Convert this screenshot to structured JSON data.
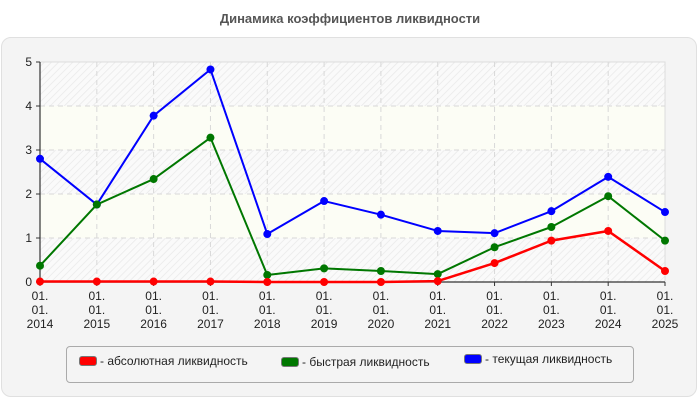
{
  "title": "Динамика коэффициентов ликвидности",
  "chart_data": {
    "type": "line",
    "title": "Динамика коэффициентов ликвидности",
    "xlabel": "",
    "ylabel": "",
    "categories": [
      "01.01.2014",
      "01.01.2015",
      "01.01.2016",
      "01.01.2017",
      "01.01.2018",
      "01.01.2019",
      "01.01.2020",
      "01.01.2021",
      "01.01.2022",
      "01.01.2023",
      "01.01.2024",
      "01.01.2025"
    ],
    "x_tick_lines": [
      [
        "01.",
        "01.",
        "2014"
      ],
      [
        "01.",
        "01.",
        "2015"
      ],
      [
        "01.",
        "01.",
        "2016"
      ],
      [
        "01.",
        "01.",
        "2017"
      ],
      [
        "01.",
        "01.",
        "2018"
      ],
      [
        "01.",
        "01.",
        "2019"
      ],
      [
        "01.",
        "01.",
        "2020"
      ],
      [
        "01.",
        "01.",
        "2021"
      ],
      [
        "01.",
        "01.",
        "2022"
      ],
      [
        "01.",
        "01.",
        "2023"
      ],
      [
        "01.",
        "01.",
        "2024"
      ],
      [
        "01.",
        "01.",
        "2025"
      ]
    ],
    "y_ticks": [
      0,
      1,
      2,
      3,
      4,
      5
    ],
    "ylim": [
      0,
      5
    ],
    "grid": true,
    "legend_position": "bottom",
    "series": [
      {
        "name": "- абсолютная ликвидность",
        "color": "#ff0000",
        "values": [
          0.01,
          0.01,
          0.01,
          0.01,
          0.0,
          0.0,
          0.0,
          0.02,
          0.43,
          0.94,
          1.16,
          0.25
        ]
      },
      {
        "name": "- быстрая ликвидность",
        "color": "#007700",
        "values": [
          0.37,
          1.76,
          2.34,
          3.28,
          0.16,
          0.31,
          0.25,
          0.18,
          0.79,
          1.25,
          1.95,
          0.94
        ]
      },
      {
        "name": "- текущая ликвидность",
        "color": "#0000ff",
        "values": [
          2.8,
          1.76,
          3.78,
          4.83,
          1.09,
          1.84,
          1.53,
          1.16,
          1.11,
          1.61,
          2.39,
          1.59
        ]
      }
    ]
  },
  "legend": [
    {
      "label": "- абсолютная ликвидность",
      "color": "#ff0000"
    },
    {
      "label": "- быстрая ликвидность",
      "color": "#007700"
    },
    {
      "label": "- текущая ликвидность",
      "color": "#0000ff"
    }
  ]
}
